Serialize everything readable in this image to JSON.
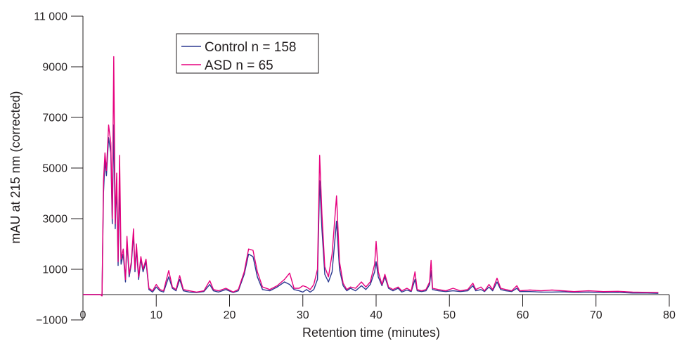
{
  "chart_data": {
    "type": "line",
    "title": "",
    "xlabel": "Retention time (minutes)",
    "ylabel": "mAU at 215 nm (corrected)",
    "xlim": [
      0,
      80
    ],
    "ylim": [
      -1000,
      11000
    ],
    "x_ticks": [
      0,
      10,
      20,
      30,
      40,
      50,
      60,
      70,
      80
    ],
    "x_tick_labels": [
      "0",
      "10",
      "20",
      "30",
      "40",
      "50",
      "60",
      "70",
      "80"
    ],
    "y_ticks": [
      -1000,
      1000,
      3000,
      5000,
      7000,
      9000,
      11000
    ],
    "y_tick_labels": [
      "−1000",
      "1000",
      "3000",
      "5000",
      "7000",
      "9000",
      "11 000"
    ],
    "grid": false,
    "legend_position": "top-left",
    "series": [
      {
        "name": "Control n = 158",
        "color": "#2b3990",
        "points": [
          [
            0,
            0
          ],
          [
            2.4,
            0
          ],
          [
            2.6,
            -50
          ],
          [
            2.8,
            4000
          ],
          [
            3.0,
            5300
          ],
          [
            3.2,
            4700
          ],
          [
            3.5,
            6200
          ],
          [
            3.8,
            5600
          ],
          [
            4.0,
            2800
          ],
          [
            4.2,
            6700
          ],
          [
            4.4,
            2600
          ],
          [
            4.6,
            4400
          ],
          [
            4.8,
            1150
          ],
          [
            5.0,
            4500
          ],
          [
            5.2,
            1200
          ],
          [
            5.5,
            1600
          ],
          [
            5.8,
            500
          ],
          [
            6.0,
            2100
          ],
          [
            6.3,
            700
          ],
          [
            6.6,
            1200
          ],
          [
            6.9,
            2400
          ],
          [
            7.1,
            900
          ],
          [
            7.3,
            1800
          ],
          [
            7.6,
            600
          ],
          [
            7.9,
            1400
          ],
          [
            8.2,
            900
          ],
          [
            8.6,
            1300
          ],
          [
            9.0,
            200
          ],
          [
            9.5,
            100
          ],
          [
            10.0,
            300
          ],
          [
            10.5,
            150
          ],
          [
            11.0,
            100
          ],
          [
            11.7,
            700
          ],
          [
            12.2,
            250
          ],
          [
            12.7,
            150
          ],
          [
            13.2,
            600
          ],
          [
            13.7,
            150
          ],
          [
            14.5,
            100
          ],
          [
            15.5,
            80
          ],
          [
            16.5,
            120
          ],
          [
            17.3,
            400
          ],
          [
            17.8,
            150
          ],
          [
            18.5,
            100
          ],
          [
            19.5,
            200
          ],
          [
            20.5,
            80
          ],
          [
            21.2,
            150
          ],
          [
            22.0,
            800
          ],
          [
            22.6,
            1600
          ],
          [
            23.2,
            1500
          ],
          [
            23.8,
            700
          ],
          [
            24.5,
            200
          ],
          [
            25.5,
            150
          ],
          [
            26.5,
            300
          ],
          [
            27.5,
            500
          ],
          [
            28.2,
            400
          ],
          [
            28.8,
            200
          ],
          [
            29.5,
            150
          ],
          [
            30.0,
            100
          ],
          [
            30.5,
            200
          ],
          [
            31.0,
            100
          ],
          [
            31.5,
            200
          ],
          [
            32.0,
            600
          ],
          [
            32.3,
            4500
          ],
          [
            32.6,
            2600
          ],
          [
            33.0,
            800
          ],
          [
            33.5,
            500
          ],
          [
            34.0,
            900
          ],
          [
            34.6,
            2900
          ],
          [
            35.0,
            1000
          ],
          [
            35.5,
            350
          ],
          [
            36.0,
            150
          ],
          [
            36.5,
            250
          ],
          [
            37.2,
            150
          ],
          [
            38.0,
            350
          ],
          [
            38.6,
            200
          ],
          [
            39.2,
            400
          ],
          [
            39.8,
            900
          ],
          [
            40.0,
            1300
          ],
          [
            40.3,
            700
          ],
          [
            40.8,
            350
          ],
          [
            41.2,
            700
          ],
          [
            41.7,
            250
          ],
          [
            42.3,
            150
          ],
          [
            43.0,
            250
          ],
          [
            43.5,
            100
          ],
          [
            44.2,
            180
          ],
          [
            44.8,
            120
          ],
          [
            45.3,
            600
          ],
          [
            45.6,
            150
          ],
          [
            46.2,
            120
          ],
          [
            46.8,
            150
          ],
          [
            47.3,
            400
          ],
          [
            47.5,
            950
          ],
          [
            47.7,
            200
          ],
          [
            48.5,
            150
          ],
          [
            49.5,
            120
          ],
          [
            50.5,
            150
          ],
          [
            51.5,
            120
          ],
          [
            52.5,
            150
          ],
          [
            53.2,
            350
          ],
          [
            53.6,
            150
          ],
          [
            54.3,
            200
          ],
          [
            54.8,
            120
          ],
          [
            55.4,
            300
          ],
          [
            55.9,
            150
          ],
          [
            56.5,
            500
          ],
          [
            57.0,
            200
          ],
          [
            57.7,
            150
          ],
          [
            58.5,
            120
          ],
          [
            59.2,
            250
          ],
          [
            59.6,
            120
          ],
          [
            61.0,
            120
          ],
          [
            62.5,
            100
          ],
          [
            64.0,
            100
          ],
          [
            65.5,
            110
          ],
          [
            67.0,
            90
          ],
          [
            69.0,
            100
          ],
          [
            71.0,
            80
          ],
          [
            73.0,
            90
          ],
          [
            75.0,
            60
          ],
          [
            77.0,
            60
          ],
          [
            78.5,
            50
          ]
        ]
      },
      {
        "name": "ASD n = 65",
        "color": "#e6007e",
        "points": [
          [
            0,
            0
          ],
          [
            2.4,
            0
          ],
          [
            2.6,
            -50
          ],
          [
            2.8,
            4500
          ],
          [
            3.0,
            5600
          ],
          [
            3.2,
            4900
          ],
          [
            3.5,
            6700
          ],
          [
            3.8,
            6000
          ],
          [
            4.0,
            3000
          ],
          [
            4.2,
            9400
          ],
          [
            4.4,
            2800
          ],
          [
            4.6,
            4800
          ],
          [
            4.8,
            1300
          ],
          [
            5.0,
            5500
          ],
          [
            5.2,
            1400
          ],
          [
            5.5,
            1800
          ],
          [
            5.8,
            600
          ],
          [
            6.0,
            2300
          ],
          [
            6.3,
            800
          ],
          [
            6.6,
            1300
          ],
          [
            6.9,
            2600
          ],
          [
            7.1,
            1000
          ],
          [
            7.3,
            2000
          ],
          [
            7.6,
            700
          ],
          [
            7.9,
            1500
          ],
          [
            8.2,
            1000
          ],
          [
            8.6,
            1400
          ],
          [
            9.0,
            250
          ],
          [
            9.5,
            150
          ],
          [
            10.0,
            400
          ],
          [
            10.5,
            200
          ],
          [
            11.0,
            150
          ],
          [
            11.7,
            950
          ],
          [
            12.2,
            300
          ],
          [
            12.7,
            200
          ],
          [
            13.2,
            750
          ],
          [
            13.7,
            200
          ],
          [
            14.5,
            150
          ],
          [
            15.5,
            100
          ],
          [
            16.5,
            150
          ],
          [
            17.3,
            550
          ],
          [
            17.8,
            200
          ],
          [
            18.5,
            150
          ],
          [
            19.5,
            250
          ],
          [
            20.5,
            100
          ],
          [
            21.2,
            200
          ],
          [
            22.0,
            900
          ],
          [
            22.6,
            1800
          ],
          [
            23.2,
            1750
          ],
          [
            23.8,
            900
          ],
          [
            24.5,
            300
          ],
          [
            25.5,
            200
          ],
          [
            26.5,
            350
          ],
          [
            27.5,
            600
          ],
          [
            28.2,
            850
          ],
          [
            28.8,
            250
          ],
          [
            29.5,
            250
          ],
          [
            30.0,
            350
          ],
          [
            30.5,
            300
          ],
          [
            31.0,
            200
          ],
          [
            31.5,
            400
          ],
          [
            32.0,
            1000
          ],
          [
            32.3,
            5500
          ],
          [
            32.6,
            3200
          ],
          [
            33.0,
            1100
          ],
          [
            33.5,
            700
          ],
          [
            34.0,
            1600
          ],
          [
            34.6,
            3900
          ],
          [
            35.0,
            1300
          ],
          [
            35.5,
            450
          ],
          [
            36.0,
            200
          ],
          [
            36.5,
            300
          ],
          [
            37.2,
            250
          ],
          [
            38.0,
            500
          ],
          [
            38.6,
            300
          ],
          [
            39.2,
            500
          ],
          [
            39.8,
            1200
          ],
          [
            40.0,
            2100
          ],
          [
            40.3,
            900
          ],
          [
            40.8,
            400
          ],
          [
            41.2,
            800
          ],
          [
            41.7,
            300
          ],
          [
            42.3,
            200
          ],
          [
            43.0,
            300
          ],
          [
            43.5,
            150
          ],
          [
            44.2,
            250
          ],
          [
            44.8,
            150
          ],
          [
            45.3,
            900
          ],
          [
            45.6,
            200
          ],
          [
            46.2,
            150
          ],
          [
            46.8,
            200
          ],
          [
            47.3,
            500
          ],
          [
            47.5,
            1350
          ],
          [
            47.7,
            250
          ],
          [
            48.5,
            200
          ],
          [
            49.5,
            150
          ],
          [
            50.5,
            250
          ],
          [
            51.5,
            150
          ],
          [
            52.5,
            200
          ],
          [
            53.2,
            450
          ],
          [
            53.6,
            200
          ],
          [
            54.3,
            300
          ],
          [
            54.8,
            150
          ],
          [
            55.4,
            400
          ],
          [
            55.9,
            200
          ],
          [
            56.5,
            650
          ],
          [
            57.0,
            250
          ],
          [
            57.7,
            200
          ],
          [
            58.5,
            150
          ],
          [
            59.2,
            350
          ],
          [
            59.6,
            150
          ],
          [
            61.0,
            180
          ],
          [
            62.5,
            150
          ],
          [
            64.0,
            180
          ],
          [
            65.5,
            150
          ],
          [
            67.0,
            120
          ],
          [
            69.0,
            150
          ],
          [
            71.0,
            120
          ],
          [
            73.0,
            130
          ],
          [
            75.0,
            100
          ],
          [
            77.0,
            90
          ],
          [
            78.5,
            80
          ]
        ]
      }
    ]
  }
}
